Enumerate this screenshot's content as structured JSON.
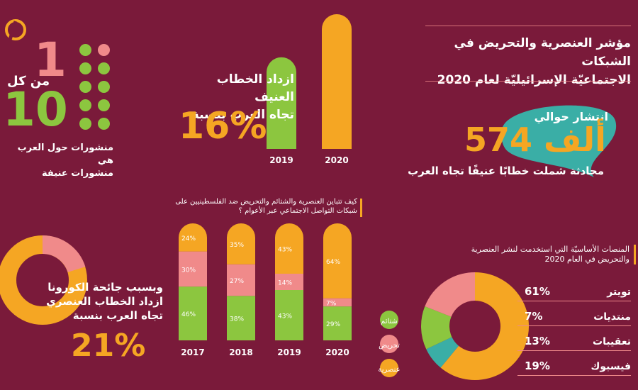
{
  "colors": {
    "background": "#7a1a3a",
    "yellow": "#f5a623",
    "green": "#8cc63f",
    "pink": "#f08a8a",
    "teal": "#3aaea6"
  },
  "header": {
    "line1": "مؤشر العنصرية والتحريض في الشبكات",
    "line2": "الاجتماعيّة الإسرائيليّة لعام 2020"
  },
  "bubble": {
    "pre": "انتشار حوالي",
    "number": "574",
    "unit": "ألف",
    "sub": "محادثة شملت خطابًا عنيفًا تجاه العرب"
  },
  "ratio": {
    "from_each": "من كل",
    "one": "1",
    "ten": "10",
    "line1": "منشورات حول العرب هي",
    "line2": "منشورات عنيفة",
    "highlighted_dots": 1,
    "total_dots": 10
  },
  "growth": {
    "line1": "ازداد الخطاب العنيف",
    "line2": "تجاه العرب بنسبة",
    "percent": "16%"
  },
  "corona": {
    "line1": "وبسبب جائحة الكورونا",
    "line2": "ازداد الخطاب العنصري",
    "line3": "تجاه العرب بنسبة",
    "percent": "21%"
  },
  "chart_data": [
    {
      "type": "bar",
      "categories": [
        "2019",
        "2020"
      ],
      "values": [
        68,
        100
      ]
    },
    {
      "type": "bar",
      "title": "كيف تتباين العنصرية والشتائم والتحريض ضد الفلسطينيين على شبكات التواصل الاجتماعي عبر الأعوام ؟",
      "categories": [
        "2017",
        "2018",
        "2019",
        "2020"
      ],
      "series": [
        {
          "name": "شتائم",
          "color": "#8cc63f",
          "values": [
            46,
            38,
            43,
            29
          ]
        },
        {
          "name": "تحريض",
          "color": "#f08a8a",
          "values": [
            30,
            27,
            14,
            7
          ]
        },
        {
          "name": "عنصرية",
          "color": "#f5a623",
          "values": [
            24,
            35,
            43,
            64
          ]
        }
      ],
      "labels": [
        [
          "46%",
          "30%",
          "24%"
        ],
        [
          "38%",
          "27%",
          "35%"
        ],
        [
          "43%",
          "14%",
          "43%"
        ],
        [
          "29%",
          "7%",
          "64%"
        ]
      ]
    },
    {
      "type": "pie",
      "title": "المنصات الأساسيّة التي استخدمت لنشر العنصرية والتحريض في العام 2020",
      "slices": [
        {
          "name": "تويتر",
          "value": 61,
          "label": "61%",
          "color": "#f5a623"
        },
        {
          "name": "منتديات",
          "value": 7,
          "label": "7%",
          "color": "#3aaea6"
        },
        {
          "name": "تعقيبات",
          "value": 13,
          "label": "13%",
          "color": "#8cc63f"
        },
        {
          "name": "فيسبوك",
          "value": 19,
          "label": "19%",
          "color": "#f08a8a"
        }
      ]
    }
  ]
}
